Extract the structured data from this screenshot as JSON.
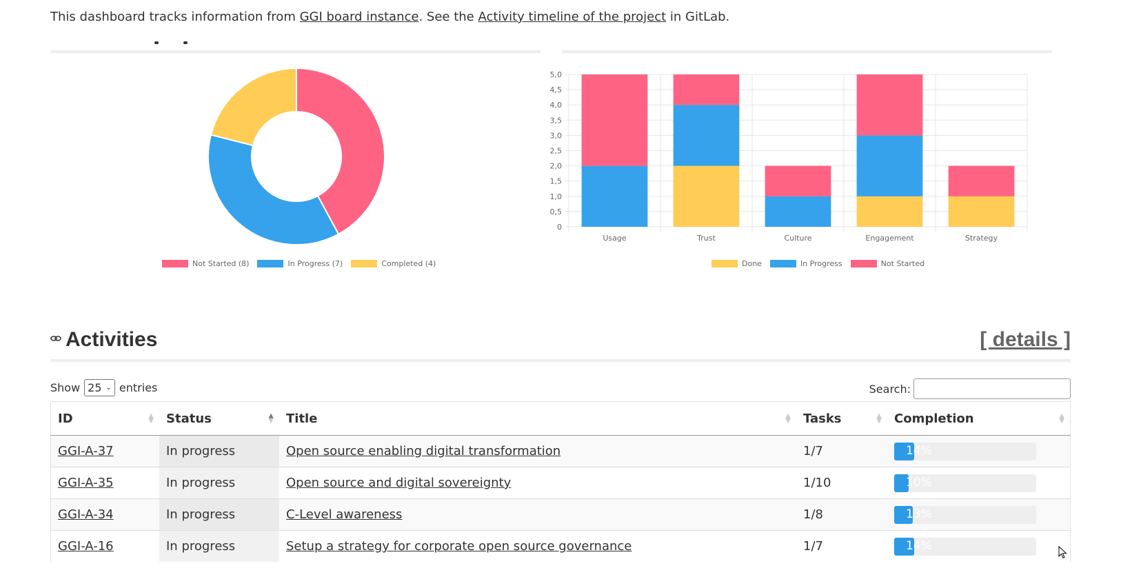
{
  "intro": {
    "prefix": "This dashboard tracks information from ",
    "link1": "GGI board instance",
    "middle": ". See the ",
    "link2": "Activity timeline of the project",
    "suffix": " in GitLab."
  },
  "donut": {
    "colors": {
      "not_started": "#ff6384",
      "in_progress": "#36a2eb",
      "completed": "#ffcd56"
    },
    "legend": [
      "Not Started (8)",
      "In Progress (7)",
      "Completed  (4)"
    ]
  },
  "chart_data": [
    {
      "type": "pie",
      "variant": "doughnut",
      "categories": [
        "Not Started",
        "In Progress",
        "Completed"
      ],
      "values": [
        8,
        7,
        4
      ],
      "colors": [
        "#ff6384",
        "#36a2eb",
        "#ffcd56"
      ],
      "legend": "bottom"
    },
    {
      "type": "bar",
      "stacked": true,
      "categories": [
        "Usage",
        "Trust",
        "Culture",
        "Engagement",
        "Strategy"
      ],
      "series": [
        {
          "name": "Done",
          "color": "#ffcd56",
          "values": [
            0,
            2,
            0,
            1,
            1
          ]
        },
        {
          "name": "In Progress",
          "color": "#36a2eb",
          "values": [
            2,
            2,
            1,
            2,
            0
          ]
        },
        {
          "name": "Not Started",
          "color": "#ff6384",
          "values": [
            3,
            1,
            1,
            2,
            1
          ]
        }
      ],
      "ylim": [
        0,
        5
      ],
      "yticks": [
        "0",
        "0,5",
        "1,0",
        "1,5",
        "2,0",
        "2,5",
        "3,0",
        "3,5",
        "4,0",
        "4,5",
        "5,0"
      ],
      "grid": true,
      "legend": "bottom"
    }
  ],
  "activities": {
    "title": "Activities",
    "details": "[ details ]",
    "show": "Show",
    "entries_value": "25",
    "entries": "entries",
    "search_label": "Search:",
    "columns": [
      "ID",
      "Status",
      "Title",
      "Tasks",
      "Completion"
    ],
    "rows": [
      {
        "id": "GGI-A-37",
        "status": "In progress",
        "title": "Open source enabling digital transformation",
        "tasks": "1/7",
        "completion": "14%",
        "pct": 14
      },
      {
        "id": "GGI-A-35",
        "status": "In progress",
        "title": "Open source and digital sovereignty",
        "tasks": "1/10",
        "completion": "10%",
        "pct": 10
      },
      {
        "id": "GGI-A-34",
        "status": "In progress",
        "title": "C-Level awareness",
        "tasks": "1/8",
        "completion": "13%",
        "pct": 13
      },
      {
        "id": "GGI-A-16",
        "status": "In progress",
        "title": "Setup a strategy for corporate open source governance",
        "tasks": "1/7",
        "completion": "14%",
        "pct": 14
      }
    ]
  }
}
